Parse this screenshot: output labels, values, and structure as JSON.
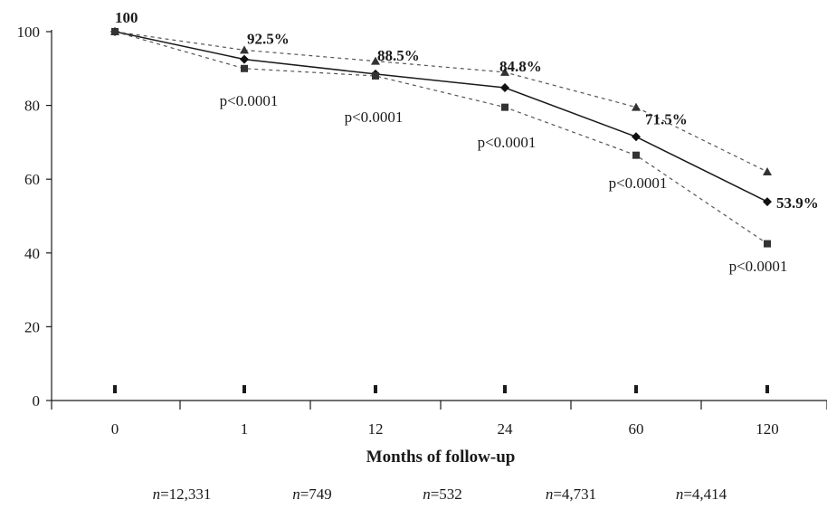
{
  "chart_data": {
    "type": "line",
    "xlabel": "Months of follow-up",
    "ylabel": "",
    "categories": [
      "0",
      "1",
      "12",
      "24",
      "60",
      "120"
    ],
    "yticks": [
      0,
      20,
      40,
      60,
      80,
      100
    ],
    "ylim": [
      0,
      100
    ],
    "grid": false,
    "series": [
      {
        "values": [
          100,
          92.5,
          88.5,
          84.8,
          71.5,
          53.9
        ],
        "marker": "diamond",
        "line": "solid",
        "color": "#1a1a1a"
      },
      {
        "values": [
          100,
          95,
          92,
          89,
          79.5,
          62
        ],
        "marker": "triangle",
        "line": "dashed",
        "color": "#555555"
      },
      {
        "values": [
          100,
          90,
          88,
          79.5,
          66.5,
          42.5
        ],
        "marker": "square",
        "line": "dashed",
        "color": "#555555"
      }
    ],
    "value_labels": [
      "100",
      "92.5%",
      "88.5%",
      "84.8%",
      "71.5%",
      "53.9%"
    ],
    "p_value_labels": [
      "p<0.0001",
      "p<0.0001",
      "p<0.0001",
      "p<0.0001",
      "p<0.0001"
    ],
    "n_labels": [
      {
        "prefix": "n",
        "value": "=12,331"
      },
      {
        "prefix": "n",
        "value": "=749"
      },
      {
        "prefix": "n",
        "value": "=532"
      },
      {
        "prefix": "n",
        "value": "=4,731"
      },
      {
        "prefix": "n",
        "value": "=4,414"
      }
    ]
  }
}
